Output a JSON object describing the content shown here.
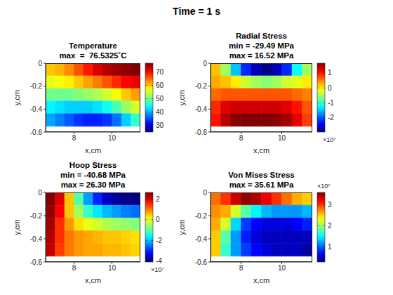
{
  "suptitle": "Time = 1 s",
  "chart_data": [
    {
      "type": "heatmap",
      "title": [
        "Temperature",
        "max  =  76.5325˚C"
      ],
      "xlabel": "x,cm",
      "ylabel": "y,cm",
      "xlim": [
        6.5,
        11.5
      ],
      "ylim": [
        -0.6,
        0
      ],
      "xticks": [
        8,
        10
      ],
      "yticks": [
        -0.6,
        -0.4,
        -0.2,
        0
      ],
      "x_edges": [
        6.5,
        7,
        7.5,
        8,
        8.5,
        9,
        9.5,
        10,
        10.5,
        11,
        11.5
      ],
      "y_edges": [
        0,
        -0.11,
        -0.22,
        -0.33,
        -0.44,
        -0.55
      ],
      "cells": [
        [
          60,
          61,
          63,
          66,
          69,
          72,
          74,
          75,
          76,
          76.5
        ],
        [
          56,
          57,
          58,
          60,
          62,
          64,
          66,
          68,
          70,
          71
        ],
        [
          50,
          50,
          50,
          51,
          52,
          53,
          55,
          57,
          60,
          62
        ],
        [
          44,
          43,
          42,
          42,
          42,
          43,
          45,
          48,
          52,
          55
        ],
        [
          40,
          38,
          36,
          34,
          33,
          33,
          34,
          37,
          42,
          47
        ]
      ],
      "colorbar_range": [
        25,
        76.5325
      ],
      "colorbar_ticks": [
        30,
        40,
        50,
        60,
        70
      ]
    },
    {
      "type": "heatmap",
      "title": [
        "Radial Stress",
        "min = -29.49 MPa",
        "max = 16.52 MPa"
      ],
      "xlabel": "x,cm",
      "ylabel": "y,cm",
      "xlim": [
        6.5,
        11.5
      ],
      "ylim": [
        -0.6,
        0
      ],
      "xticks": [
        8,
        10
      ],
      "yticks": [
        -0.6,
        -0.4,
        -0.2,
        0
      ],
      "x_edges": [
        6.5,
        7,
        7.5,
        8,
        8.5,
        9,
        9.5,
        10,
        10.5,
        11,
        11.5
      ],
      "y_edges": [
        0,
        -0.11,
        -0.22,
        -0.33,
        -0.44,
        -0.55
      ],
      "cells": [
        [
          2,
          -5,
          -15,
          -22,
          -27,
          -29,
          -27,
          -22,
          -12,
          -5
        ],
        [
          3,
          2,
          0,
          -3,
          -5,
          -6,
          -5,
          -3,
          -2,
          0
        ],
        [
          6,
          7,
          7,
          7,
          7,
          7,
          7,
          7,
          6,
          5
        ],
        [
          9,
          12,
          13,
          13,
          13,
          13,
          13,
          12,
          10,
          7
        ],
        [
          10,
          14,
          16,
          16.5,
          16.5,
          16.5,
          16,
          15,
          12,
          8
        ]
      ],
      "colorbar_range": [
        -29.49,
        16.52
      ],
      "colorbar_ticks": [
        {
          "value": -20,
          "label": "-2"
        },
        {
          "value": -10,
          "label": "-1"
        },
        {
          "value": 0,
          "label": "0"
        },
        {
          "value": 10,
          "label": "1"
        }
      ],
      "colorbar_label": "×10⁷"
    },
    {
      "type": "heatmap",
      "title": [
        "Hoop Stress",
        "min = -40.68 MPa",
        "max = 26.30 MPa"
      ],
      "xlabel": "x,cm",
      "ylabel": "y,cm",
      "xlim": [
        6.5,
        11.5
      ],
      "ylim": [
        -0.6,
        0
      ],
      "xticks": [
        8,
        10
      ],
      "yticks": [
        -0.6,
        -0.4,
        -0.2,
        0
      ],
      "x_edges": [
        6.5,
        7,
        7.5,
        8,
        8.5,
        9,
        9.5,
        10,
        10.5,
        11,
        11.5
      ],
      "y_edges": [
        0,
        -0.11,
        -0.22,
        -0.33,
        -0.44,
        -0.55
      ],
      "cells": [
        [
          26,
          20,
          5,
          -10,
          -22,
          -30,
          -36,
          -39,
          -40,
          -40.5
        ],
        [
          25,
          18,
          5,
          -5,
          -12,
          -17,
          -20,
          -22,
          -24,
          -25
        ],
        [
          24,
          15,
          8,
          3,
          0,
          -2,
          -4,
          -5,
          -6,
          -7
        ],
        [
          23,
          15,
          10,
          8,
          7,
          6,
          5,
          5,
          4,
          3
        ],
        [
          22,
          14,
          10,
          8,
          7,
          7,
          6,
          6,
          5,
          4
        ]
      ],
      "colorbar_range": [
        -40.68,
        26.3
      ],
      "colorbar_ticks": [
        {
          "value": -40,
          "label": "-4"
        },
        {
          "value": -20,
          "label": "-2"
        },
        {
          "value": 0,
          "label": "0"
        },
        {
          "value": 20,
          "label": "2"
        }
      ],
      "colorbar_label": "×10⁷"
    },
    {
      "type": "heatmap",
      "title": [
        "Von Mises Stress",
        "max = 35.61 MPa"
      ],
      "xlabel": "x,cm",
      "ylabel": "y,cm",
      "xlim": [
        6.5,
        11.5
      ],
      "ylim": [
        -0.6,
        0
      ],
      "xticks": [
        8,
        10
      ],
      "yticks": [
        -0.6,
        -0.4,
        -0.2,
        0
      ],
      "x_edges": [
        6.5,
        7,
        7.5,
        8,
        8.5,
        9,
        9.5,
        10,
        10.5,
        11,
        11.5
      ],
      "y_edges": [
        0,
        -0.11,
        -0.22,
        -0.33,
        -0.44,
        -0.55
      ],
      "cells": [
        [
          28,
          30,
          33,
          35,
          34,
          32,
          30,
          28,
          26,
          25
        ],
        [
          27,
          26,
          22,
          18,
          15,
          13,
          12,
          12,
          12,
          13
        ],
        [
          26,
          22,
          14,
          9,
          7,
          6,
          6,
          6,
          7,
          8
        ],
        [
          25,
          18,
          12,
          8,
          6,
          5,
          5,
          5,
          5,
          5
        ],
        [
          25,
          17,
          12,
          9,
          7,
          6,
          5,
          5,
          5,
          4
        ]
      ],
      "colorbar_range": [
        3,
        35.61
      ],
      "colorbar_ticks": [
        {
          "value": 10,
          "label": "1"
        },
        {
          "value": 20,
          "label": "2"
        },
        {
          "value": 30,
          "label": "3"
        }
      ],
      "colorbar_label": "×10⁷"
    }
  ]
}
